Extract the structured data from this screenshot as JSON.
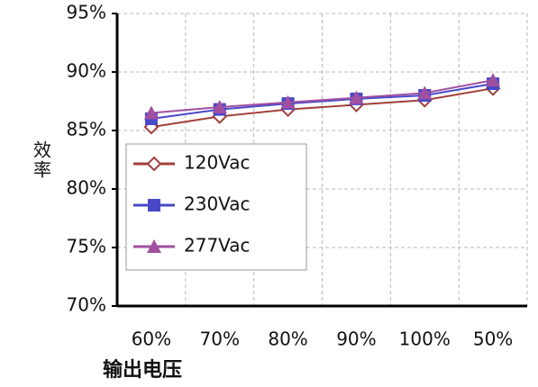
{
  "chart_data": {
    "type": "line",
    "y_label": "效率",
    "x_label": "输出电压",
    "categories": [
      "60%",
      "70%",
      "80%",
      "90%",
      "100%",
      "50%"
    ],
    "series": [
      {
        "name": "120Vac",
        "color": "#a0403c",
        "marker": "diamond",
        "values": [
          85.3,
          86.2,
          86.8,
          87.2,
          87.6,
          88.6
        ]
      },
      {
        "name": "230Vac",
        "color": "#4848c8",
        "marker": "square",
        "values": [
          86.0,
          86.8,
          87.3,
          87.7,
          88.0,
          89.0
        ]
      },
      {
        "name": "277Vac",
        "color": "#a050a0",
        "marker": "triangle",
        "values": [
          86.5,
          87.0,
          87.4,
          87.8,
          88.2,
          89.3
        ]
      }
    ],
    "ylim": [
      70,
      95
    ],
    "yticks": [
      {
        "value": 70,
        "label": "70%"
      },
      {
        "value": 75,
        "label": "75%"
      },
      {
        "value": 80,
        "label": "80%"
      },
      {
        "value": 85,
        "label": "85%"
      },
      {
        "value": 90,
        "label": "90%"
      },
      {
        "value": 95,
        "label": "95%"
      }
    ],
    "grid": true
  }
}
